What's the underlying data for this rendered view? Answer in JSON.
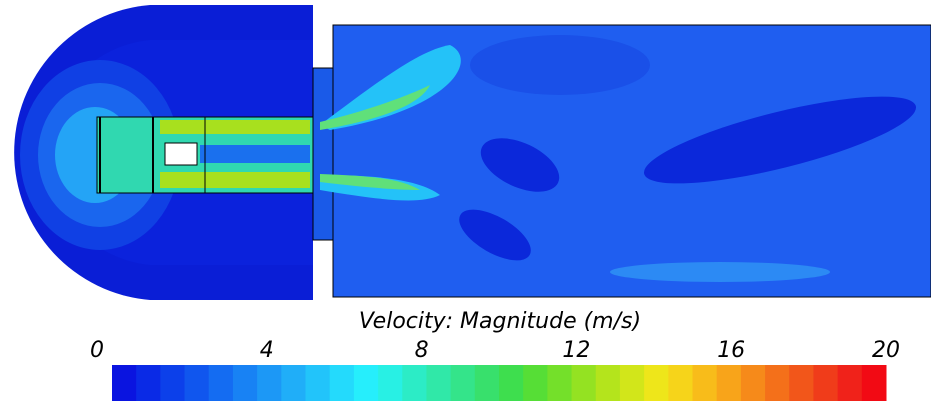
{
  "chart_data": {
    "type": "contour",
    "title": "Velocity: Magnitude (m/s)",
    "vlim": [
      0,
      20
    ],
    "vticks": [
      0,
      4,
      8,
      12,
      16,
      20
    ],
    "colormap": [
      "#0a14e0",
      "#0a2ae6",
      "#0c40ea",
      "#1056ee",
      "#146cf2",
      "#1882f4",
      "#1c98f6",
      "#20aef8",
      "#22c4fa",
      "#24dafc",
      "#26eefc",
      "#28f0e4",
      "#2cecc6",
      "#30e8a8",
      "#34e48a",
      "#38e06c",
      "#3ede4e",
      "#56de36",
      "#74e02a",
      "#94e222",
      "#b4e41c",
      "#d2e61a",
      "#eee61a",
      "#f6d41a",
      "#f8bc1a",
      "#f8a41a",
      "#f68a1a",
      "#f4701a",
      "#f2561a",
      "#f03c1a",
      "#f0221a",
      "#f20a14"
    ]
  }
}
